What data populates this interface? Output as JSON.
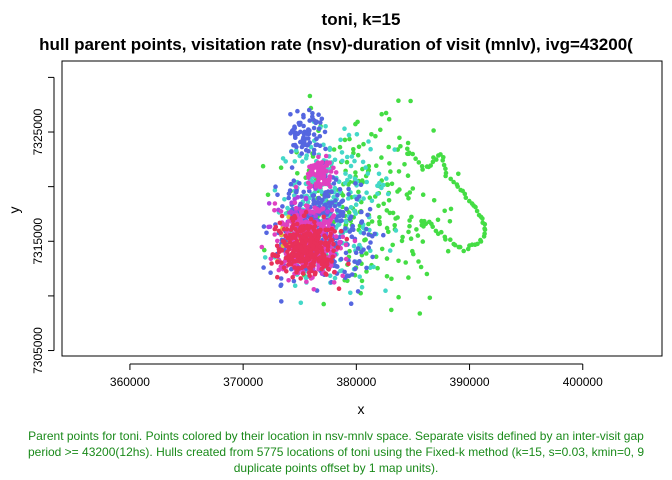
{
  "chart_data": {
    "type": "scatter",
    "title": "toni, k=15",
    "subtitle": "hull parent points, visitation rate (nsv)-duration of visit (mnlv), ivg=43200(",
    "xlabel": "x",
    "ylabel": "y",
    "xlim": [
      354000,
      407000
    ],
    "ylim": [
      7304500,
      7331500
    ],
    "x_ticks": [
      360000,
      370000,
      380000,
      390000,
      400000
    ],
    "x_tick_labels": [
      "360000",
      "370000",
      "380000",
      "390000",
      "400000"
    ],
    "y_ticks": [
      7305000,
      7315000,
      7325000
    ],
    "y_tick_labels": [
      "7305000",
      "7315000",
      "7325000"
    ],
    "y_minor_ticks": [
      7310000,
      7320000,
      7330000
    ],
    "grid": false,
    "legend": "none",
    "colors": {
      "green": "#44dd44",
      "teal": "#44d8c8",
      "blue": "#5566e0",
      "purple": "#b040e0",
      "magenta": "#e040c0",
      "red": "#e8305a",
      "yellow": "#d8c830"
    },
    "clusters": [
      {
        "color": "red",
        "x": [
          371500,
          379500
        ],
        "y": [
          7310500,
          7318500
        ],
        "n": 320
      },
      {
        "color": "magenta",
        "x": [
          371000,
          380500
        ],
        "y": [
          7309500,
          7320500
        ],
        "n": 280
      },
      {
        "color": "purple",
        "x": [
          371500,
          379000
        ],
        "y": [
          7310000,
          7321000
        ],
        "n": 120
      },
      {
        "color": "blue",
        "x": [
          370500,
          383500
        ],
        "y": [
          7308000,
          7324000
        ],
        "n": 320
      },
      {
        "color": "teal",
        "x": [
          370000,
          385000
        ],
        "y": [
          7306500,
          7329000
        ],
        "n": 260
      },
      {
        "color": "green",
        "x": [
          370000,
          392000
        ],
        "y": [
          7306000,
          7330500
        ],
        "n": 220
      },
      {
        "color": "magenta",
        "x": [
          375000,
          378500
        ],
        "y": [
          7319000,
          7323500
        ],
        "n": 80
      },
      {
        "color": "blue",
        "x": [
          373500,
          378000
        ],
        "y": [
          7322000,
          7328000
        ],
        "n": 70
      },
      {
        "color": "yellow",
        "x": [
          371000,
          377000
        ],
        "y": [
          7312000,
          7318000
        ],
        "n": 12
      }
    ],
    "loop": {
      "color": "green",
      "x": [
        384500,
        386000,
        387500,
        388000,
        389500,
        390500,
        391500,
        391000,
        389500,
        388000,
        386500,
        385500
      ],
      "y": [
        7323500,
        7321500,
        7323000,
        7321000,
        7319500,
        7318000,
        7316500,
        7315000,
        7314200,
        7315200,
        7316500,
        7317000
      ]
    }
  },
  "caption": "Parent points for toni. Points colored by their location in nsv-mnlv space. Separate visits defined by an inter-visit gap period >= 43200(12hs). Hulls created from 5775 locations of toni using the Fixed-k method (k=15, s=0.03, kmin=0, 9 duplicate points offset by 1 map units)."
}
